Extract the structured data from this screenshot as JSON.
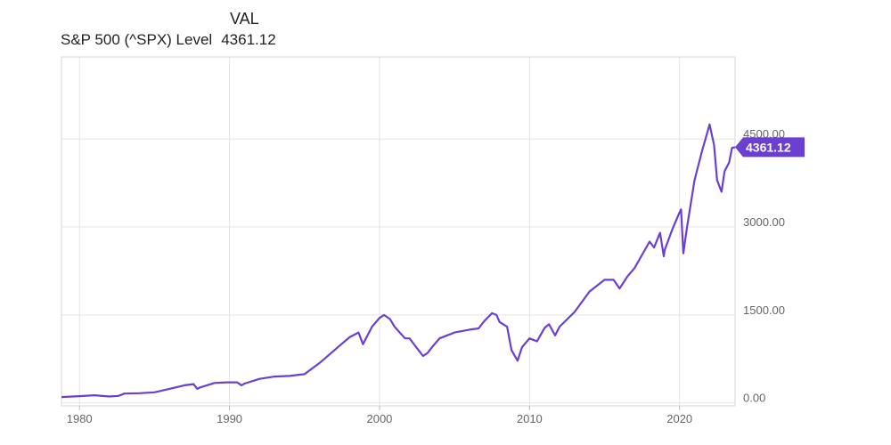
{
  "header": {
    "val_label": "VAL",
    "series_label": "S&P 500 (^SPX) Level",
    "series_value": "4361.12"
  },
  "colors": {
    "line": "#6a3fd1",
    "badge": "#6a3fd1",
    "grid": "#e4e4e4",
    "axis_text": "#666666"
  },
  "chart_data": {
    "type": "line",
    "xlim": [
      1978.8,
      2023.7
    ],
    "ylim": [
      -50,
      5900
    ],
    "x_ticks": [
      {
        "value": 1980,
        "label": "1980"
      },
      {
        "value": 1990,
        "label": "1990"
      },
      {
        "value": 2000,
        "label": "2000"
      },
      {
        "value": 2010,
        "label": "2010"
      },
      {
        "value": 2020,
        "label": "2020"
      }
    ],
    "y_ticks": [
      {
        "value": 0,
        "label": "0.00"
      },
      {
        "value": 1500,
        "label": "1500.00"
      },
      {
        "value": 3000,
        "label": "3000.00"
      },
      {
        "value": 4500,
        "label": "4500.00"
      }
    ],
    "last_value": 4361.12,
    "last_label": "4361.12",
    "series": [
      {
        "x": [
          1978.8,
          1980,
          1981,
          1982,
          1982.6,
          1983,
          1984,
          1985,
          1986,
          1987,
          1987.6,
          1987.85,
          1988,
          1989,
          1989.8,
          1990.5,
          1990.8,
          1991,
          1992,
          1993,
          1994,
          1995,
          1996,
          1997,
          1998,
          1998.6,
          1998.9,
          1999.5,
          2000,
          2000.3,
          2000.7,
          2001,
          2001.7,
          2002,
          2002.6,
          2002.9,
          2003.2,
          2003.5,
          2004,
          2005,
          2006,
          2006.6,
          2007,
          2007.5,
          2007.8,
          2008,
          2008.5,
          2008.8,
          2009.2,
          2009.5,
          2010,
          2010.5,
          2011,
          2011.3,
          2011.7,
          2012,
          2013,
          2014,
          2015,
          2015.6,
          2016,
          2016.5,
          2017,
          2018,
          2018.3,
          2018.7,
          2018.95,
          2019,
          2019.5,
          2020,
          2020.1,
          2020.25,
          2020.5,
          2021,
          2021.5,
          2022,
          2022.3,
          2022.5,
          2022.8,
          2023,
          2023.3,
          2023.5,
          2023.7
        ],
        "y": [
          100,
          115,
          130,
          110,
          120,
          160,
          165,
          180,
          240,
          300,
          320,
          240,
          260,
          340,
          350,
          350,
          300,
          330,
          410,
          450,
          460,
          490,
          680,
          900,
          1120,
          1200,
          1000,
          1300,
          1450,
          1500,
          1430,
          1300,
          1100,
          1100,
          900,
          800,
          850,
          950,
          1100,
          1200,
          1250,
          1270,
          1400,
          1530,
          1500,
          1380,
          1300,
          900,
          720,
          950,
          1100,
          1050,
          1280,
          1340,
          1150,
          1300,
          1550,
          1900,
          2100,
          2100,
          1950,
          2150,
          2300,
          2750,
          2650,
          2900,
          2500,
          2600,
          2950,
          3250,
          3300,
          2550,
          3000,
          3800,
          4300,
          4750,
          4400,
          3800,
          3600,
          3950,
          4100,
          4350,
          4361
        ]
      }
    ]
  }
}
